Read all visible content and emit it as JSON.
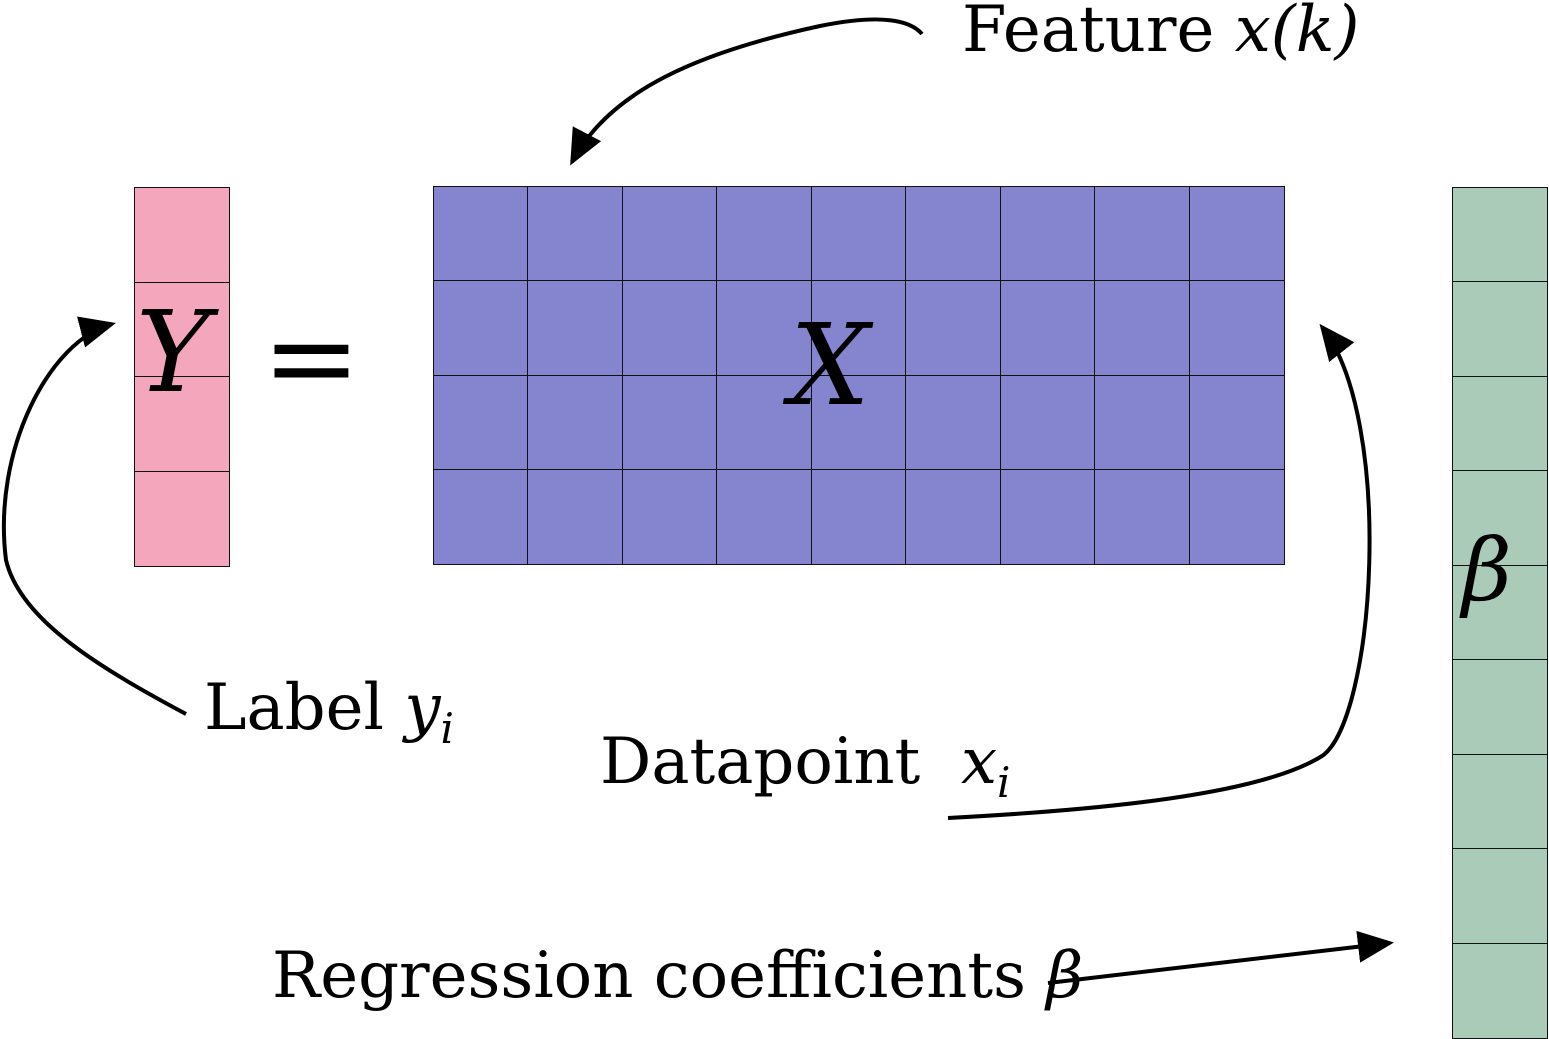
{
  "colors": {
    "y_fill": "#f3a6bc",
    "x_fill": "#8585cf",
    "beta_fill": "#a9cbb8",
    "line": "#111111"
  },
  "y_vector": {
    "symbol": "Y",
    "rows": 4,
    "cols": 1
  },
  "equals": "=",
  "x_matrix": {
    "symbol": "X",
    "rows": 4,
    "cols": 9
  },
  "beta_vector": {
    "symbol": "β",
    "rows": 9,
    "cols": 1
  },
  "labels": {
    "feature": {
      "text": "Feature ",
      "math": "x(k)"
    },
    "label": {
      "text": "Label ",
      "math": "y",
      "sub": "i"
    },
    "datapoint": {
      "text": "Datapoint ",
      "math": "x",
      "sub": "i"
    },
    "regression": {
      "text": "Regression coefficients ",
      "math": "β"
    }
  }
}
